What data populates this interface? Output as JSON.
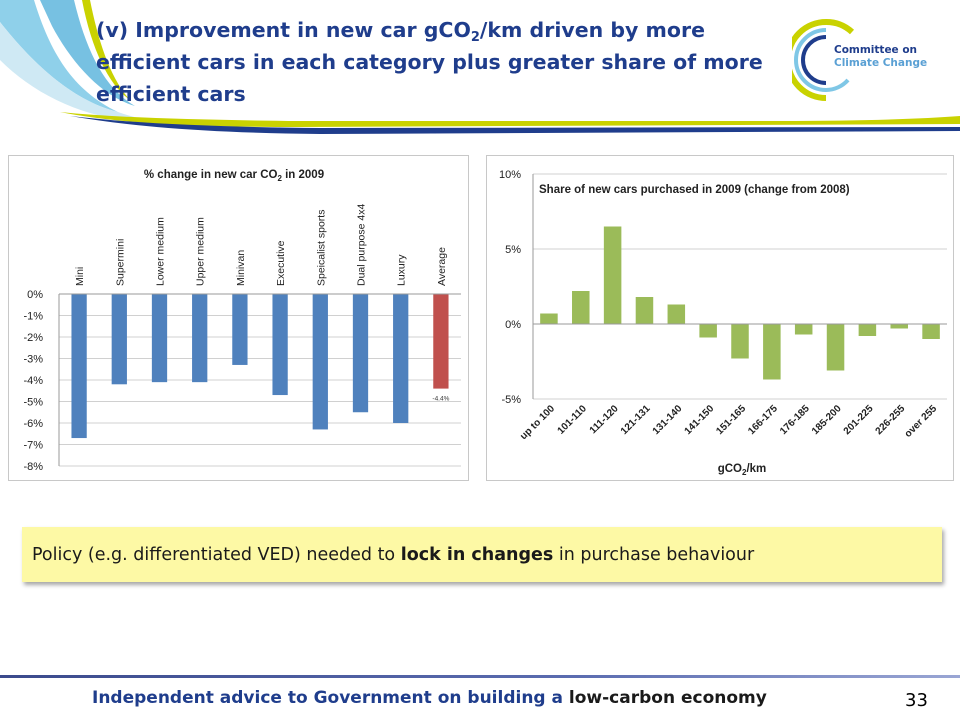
{
  "slide": {
    "title_pre": "(v) Improvement in new car gCO",
    "title_sub": "2",
    "title_post": "/km driven by more efficient cars in each category plus greater share of more efficient cars",
    "logo_line1": "Committee on",
    "logo_line2": "Climate Change",
    "policy_pre": "Policy (e.g. differentiated VED) needed to ",
    "policy_bold": "lock in changes",
    "policy_post": " in purchase behaviour",
    "footer_pre": "Independent advice to Government on building a ",
    "footer_emph": "low-carbon economy",
    "page_number": "33"
  },
  "colors": {
    "title": "#1f3d8c",
    "bar_blue": "#4f81bd",
    "bar_red": "#c0504d",
    "bar_green": "#9bbb59",
    "policy_bg": "#fdf9a5"
  },
  "chart_data": [
    {
      "type": "bar",
      "title_pre": "% change in new car CO",
      "title_sub": "2",
      "title_post": " in 2009",
      "categories": [
        "Mini",
        "Supermini",
        "Lower medium",
        "Upper medium",
        "Minivan",
        "Executive",
        "Speicalist sports",
        "Dual purpose 4x4",
        "Luxury",
        "Average"
      ],
      "values": [
        -6.7,
        -4.2,
        -4.1,
        -4.1,
        -3.3,
        -4.7,
        -6.3,
        -5.5,
        -6.0,
        -4.4
      ],
      "highlight_index": 9,
      "annotation": "-4.4%",
      "yticks": [
        "0%",
        "-1%",
        "-2%",
        "-3%",
        "-4%",
        "-5%",
        "-6%",
        "-7%",
        "-8%"
      ],
      "ylim": [
        -8,
        0
      ],
      "grid": true,
      "unit": "%"
    },
    {
      "type": "bar",
      "title": "Share of new cars purchased in 2009 (change from 2008)",
      "categories": [
        "up to 100",
        "101-110",
        "111-120",
        "121-131",
        "131-140",
        "141-150",
        "151-165",
        "166-175",
        "176-185",
        "185-200",
        "201-225",
        "226-255",
        "over 255"
      ],
      "values": [
        0.7,
        2.2,
        6.5,
        1.8,
        1.3,
        -0.9,
        -2.3,
        -3.7,
        -0.7,
        -3.1,
        -0.8,
        -0.3,
        -1.0
      ],
      "yticks": [
        "10%",
        "5%",
        "0%",
        "-5%"
      ],
      "ylim": [
        -5,
        10
      ],
      "xlabel_pre": "gCO",
      "xlabel_sub": "2",
      "xlabel_post": "/km",
      "grid": true,
      "unit": "%"
    }
  ]
}
